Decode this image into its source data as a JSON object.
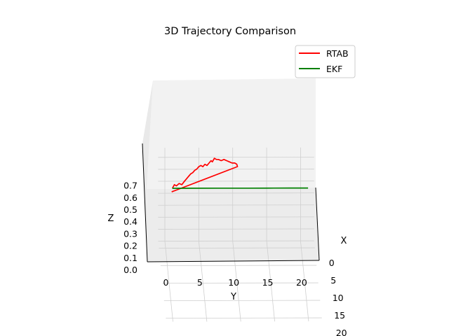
{
  "chart_data": {
    "type": "line3d",
    "title": "3D Trajectory Comparison",
    "xlabel": "X",
    "ylabel": "Y",
    "zlabel": "Z",
    "xlim": [
      -2,
      21
    ],
    "ylim": [
      -1,
      22
    ],
    "zlim": [
      0,
      0.78
    ],
    "x_ticks": [
      "0",
      "5",
      "10",
      "15",
      "20"
    ],
    "y_ticks": [
      "0",
      "5",
      "10",
      "15",
      "20"
    ],
    "z_ticks": [
      "0.0",
      "0.1",
      "0.2",
      "0.3",
      "0.4",
      "0.5",
      "0.6",
      "0.7"
    ],
    "grid": true,
    "legend_position": "top-right",
    "series": [
      {
        "name": "RTAB",
        "color": "#ff0000",
        "points": [
          [
            0,
            1,
            0.5
          ],
          [
            0,
            1.3,
            0.53
          ],
          [
            0,
            1.6,
            0.52
          ],
          [
            0,
            2.0,
            0.54
          ],
          [
            0,
            2.4,
            0.53
          ],
          [
            0,
            2.8,
            0.56
          ],
          [
            0,
            3.1,
            0.58
          ],
          [
            0,
            3.4,
            0.6
          ],
          [
            0,
            3.7,
            0.62
          ],
          [
            0,
            4.0,
            0.63
          ],
          [
            0,
            4.3,
            0.65
          ],
          [
            0,
            4.6,
            0.66
          ],
          [
            0,
            4.9,
            0.68
          ],
          [
            0,
            5.2,
            0.69
          ],
          [
            0,
            5.5,
            0.68
          ],
          [
            0,
            5.8,
            0.7
          ],
          [
            0,
            6.1,
            0.69
          ],
          [
            0,
            6.4,
            0.71
          ],
          [
            0,
            6.7,
            0.73
          ],
          [
            0,
            6.9,
            0.72
          ],
          [
            0,
            7.2,
            0.75
          ],
          [
            0,
            7.5,
            0.74
          ],
          [
            0,
            7.8,
            0.74
          ],
          [
            0,
            8.2,
            0.73
          ],
          [
            0,
            8.6,
            0.74
          ],
          [
            0,
            9.0,
            0.73
          ],
          [
            0,
            9.4,
            0.72
          ],
          [
            0,
            9.8,
            0.71
          ],
          [
            0,
            10.2,
            0.71
          ],
          [
            0,
            10.5,
            0.7
          ],
          [
            0,
            10.6,
            0.68
          ],
          [
            0,
            0.9,
            0.47
          ]
        ]
      },
      {
        "name": "EKF",
        "color": "#008000",
        "points": [
          [
            0,
            1,
            0.5
          ],
          [
            0,
            4,
            0.5
          ],
          [
            0,
            8,
            0.5
          ],
          [
            0,
            12,
            0.5
          ],
          [
            0,
            16,
            0.5
          ],
          [
            0,
            18.5,
            0.5
          ],
          [
            0,
            21,
            0.5
          ]
        ]
      }
    ]
  }
}
